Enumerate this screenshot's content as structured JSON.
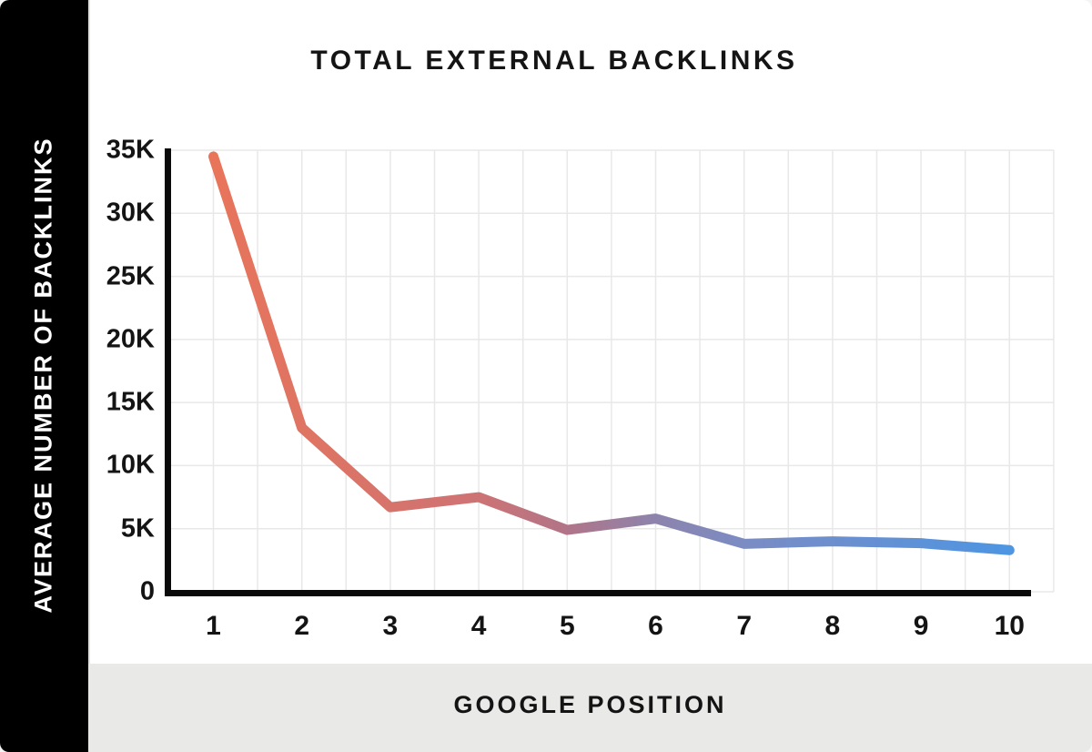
{
  "chart_data": {
    "type": "line",
    "title": "TOTAL EXTERNAL BACKLINKS",
    "xlabel": "GOOGLE POSITION",
    "ylabel": "AVERAGE NUMBER OF BACKLINKS",
    "categories": [
      "1",
      "2",
      "3",
      "4",
      "5",
      "6",
      "7",
      "8",
      "9",
      "10"
    ],
    "values": [
      34500,
      13000,
      6700,
      7500,
      4900,
      5800,
      3800,
      4000,
      3850,
      3300
    ],
    "ylim": [
      0,
      35000
    ],
    "ytick_step": 5000,
    "ytick_labels": [
      "0",
      "5K",
      "10K",
      "15K",
      "20K",
      "25K",
      "30K",
      "35K"
    ],
    "grid": true,
    "legend": false,
    "line_gradient": {
      "stops": [
        "#E8745A",
        "#CE7374",
        "#B27487",
        "#8E83AB",
        "#7A8CC4",
        "#4E95E2"
      ],
      "offsets": [
        0,
        0.33,
        0.44,
        0.55,
        0.67,
        1
      ]
    }
  },
  "colors": {
    "sidebar_bg": "#000000",
    "sidebar_text": "#ffffff",
    "card_bg": "#ffffff",
    "bottom_band_bg": "#e9e9e8",
    "axis": "#0a0a0a",
    "gridline": "#e8e8e8",
    "text": "#141414"
  }
}
